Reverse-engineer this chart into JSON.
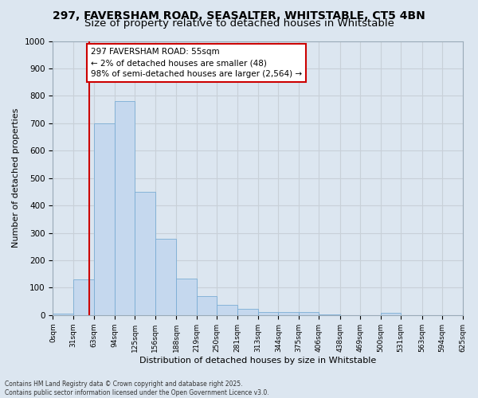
{
  "title1": "297, FAVERSHAM ROAD, SEASALTER, WHITSTABLE, CT5 4BN",
  "title2": "Size of property relative to detached houses in Whitstable",
  "xlabel": "Distribution of detached houses by size in Whitstable",
  "ylabel": "Number of detached properties",
  "bar_edges": [
    0,
    31,
    63,
    94,
    125,
    156,
    188,
    219,
    250,
    281,
    313,
    344,
    375,
    406,
    438,
    469,
    500,
    531,
    563,
    594,
    625
  ],
  "bar_values": [
    5,
    130,
    700,
    780,
    450,
    278,
    133,
    70,
    37,
    22,
    12,
    10,
    10,
    2,
    0,
    0,
    8,
    0,
    0,
    0
  ],
  "bar_color": "#c5d8ee",
  "bar_edge_color": "#7aadd4",
  "grid_color": "#c8d0d8",
  "bg_color": "#dce6f0",
  "red_line_x": 55,
  "annotation_text": "297 FAVERSHAM ROAD: 55sqm\n← 2% of detached houses are smaller (48)\n98% of semi-detached houses are larger (2,564) →",
  "annotation_box_color": "#ffffff",
  "annotation_border_color": "#cc0000",
  "ylim": [
    0,
    1000
  ],
  "yticks": [
    0,
    100,
    200,
    300,
    400,
    500,
    600,
    700,
    800,
    900,
    1000
  ],
  "footer1": "Contains HM Land Registry data © Crown copyright and database right 2025.",
  "footer2": "Contains public sector information licensed under the Open Government Licence v3.0.",
  "title1_fontsize": 10,
  "title2_fontsize": 9.5,
  "tick_label_fontsize": 6.5,
  "axis_label_fontsize": 8,
  "annotation_fontsize": 7.5,
  "footer_fontsize": 5.5
}
